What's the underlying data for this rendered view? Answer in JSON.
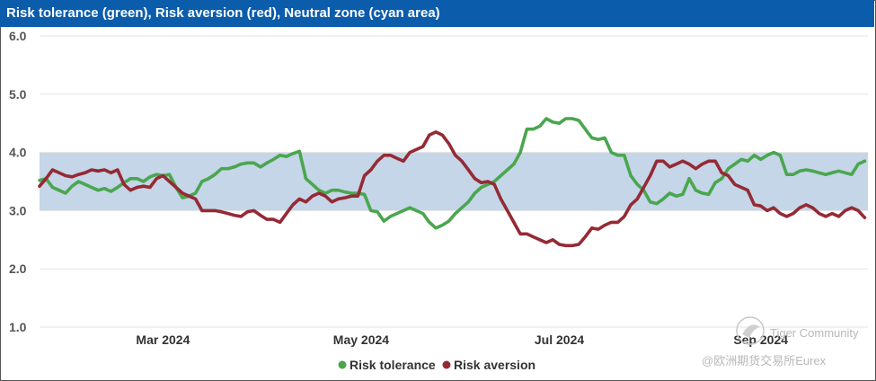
{
  "chart_data": {
    "type": "line",
    "title": "Risk tolerance (green), Risk aversion (red), Neutral zone (cyan area)",
    "xlabel": "",
    "ylabel": "",
    "ylim": [
      1.0,
      6.0
    ],
    "y_ticks": [
      "1.0",
      "2.0",
      "3.0",
      "4.0",
      "5.0",
      "6.0"
    ],
    "x_ticks": [
      {
        "label": "Mar 2024",
        "t": 38
      },
      {
        "label": "May 2024",
        "t": 99
      },
      {
        "label": "Jul 2024",
        "t": 160
      },
      {
        "label": "Sep 2024",
        "t": 222
      }
    ],
    "x_range": [
      0,
      255
    ],
    "neutral_zone": {
      "low": 3.0,
      "high": 4.0,
      "color": "#c4d6e7"
    },
    "series": [
      {
        "name": "Risk tolerance",
        "color": "#4aa64f",
        "points": [
          [
            0,
            3.52
          ],
          [
            2,
            3.55
          ],
          [
            4,
            3.4
          ],
          [
            6,
            3.35
          ],
          [
            8,
            3.3
          ],
          [
            10,
            3.42
          ],
          [
            12,
            3.5
          ],
          [
            14,
            3.45
          ],
          [
            16,
            3.4
          ],
          [
            18,
            3.35
          ],
          [
            20,
            3.38
          ],
          [
            22,
            3.33
          ],
          [
            24,
            3.4
          ],
          [
            26,
            3.48
          ],
          [
            28,
            3.55
          ],
          [
            30,
            3.55
          ],
          [
            32,
            3.5
          ],
          [
            34,
            3.58
          ],
          [
            36,
            3.62
          ],
          [
            38,
            3.6
          ],
          [
            40,
            3.62
          ],
          [
            42,
            3.4
          ],
          [
            44,
            3.22
          ],
          [
            46,
            3.25
          ],
          [
            48,
            3.3
          ],
          [
            50,
            3.5
          ],
          [
            52,
            3.55
          ],
          [
            54,
            3.62
          ],
          [
            56,
            3.72
          ],
          [
            58,
            3.72
          ],
          [
            60,
            3.75
          ],
          [
            62,
            3.8
          ],
          [
            64,
            3.82
          ],
          [
            66,
            3.82
          ],
          [
            68,
            3.75
          ],
          [
            70,
            3.82
          ],
          [
            72,
            3.88
          ],
          [
            74,
            3.95
          ],
          [
            76,
            3.93
          ],
          [
            78,
            3.98
          ],
          [
            80,
            4.02
          ],
          [
            82,
            3.55
          ],
          [
            84,
            3.45
          ],
          [
            86,
            3.35
          ],
          [
            88,
            3.3
          ],
          [
            90,
            3.35
          ],
          [
            92,
            3.35
          ],
          [
            94,
            3.32
          ],
          [
            96,
            3.3
          ],
          [
            98,
            3.3
          ],
          [
            100,
            3.28
          ],
          [
            102,
            3.0
          ],
          [
            104,
            2.98
          ],
          [
            106,
            2.82
          ],
          [
            108,
            2.9
          ],
          [
            110,
            2.95
          ],
          [
            112,
            3.0
          ],
          [
            114,
            3.05
          ],
          [
            116,
            3.0
          ],
          [
            118,
            2.95
          ],
          [
            120,
            2.8
          ],
          [
            122,
            2.7
          ],
          [
            124,
            2.75
          ],
          [
            126,
            2.82
          ],
          [
            128,
            2.95
          ],
          [
            130,
            3.05
          ],
          [
            132,
            3.15
          ],
          [
            134,
            3.3
          ],
          [
            136,
            3.4
          ],
          [
            138,
            3.45
          ],
          [
            140,
            3.5
          ],
          [
            142,
            3.6
          ],
          [
            144,
            3.7
          ],
          [
            146,
            3.8
          ],
          [
            148,
            4.0
          ],
          [
            150,
            4.4
          ],
          [
            152,
            4.4
          ],
          [
            154,
            4.45
          ],
          [
            156,
            4.58
          ],
          [
            158,
            4.52
          ],
          [
            160,
            4.5
          ],
          [
            162,
            4.58
          ],
          [
            164,
            4.58
          ],
          [
            166,
            4.55
          ],
          [
            168,
            4.4
          ],
          [
            170,
            4.25
          ],
          [
            172,
            4.22
          ],
          [
            174,
            4.25
          ],
          [
            176,
            4.0
          ],
          [
            178,
            3.95
          ],
          [
            180,
            3.95
          ],
          [
            182,
            3.6
          ],
          [
            184,
            3.45
          ],
          [
            186,
            3.35
          ],
          [
            188,
            3.15
          ],
          [
            190,
            3.12
          ],
          [
            192,
            3.2
          ],
          [
            194,
            3.3
          ],
          [
            196,
            3.25
          ],
          [
            198,
            3.28
          ],
          [
            200,
            3.55
          ],
          [
            202,
            3.35
          ],
          [
            204,
            3.3
          ],
          [
            206,
            3.28
          ],
          [
            208,
            3.48
          ],
          [
            210,
            3.55
          ],
          [
            212,
            3.72
          ],
          [
            214,
            3.8
          ],
          [
            216,
            3.88
          ],
          [
            218,
            3.85
          ],
          [
            220,
            3.95
          ],
          [
            222,
            3.88
          ],
          [
            224,
            3.95
          ],
          [
            226,
            4.0
          ],
          [
            228,
            3.95
          ],
          [
            230,
            3.62
          ],
          [
            232,
            3.62
          ],
          [
            234,
            3.68
          ],
          [
            236,
            3.7
          ],
          [
            238,
            3.68
          ],
          [
            240,
            3.65
          ],
          [
            242,
            3.62
          ],
          [
            244,
            3.65
          ],
          [
            246,
            3.68
          ],
          [
            248,
            3.65
          ],
          [
            250,
            3.62
          ],
          [
            252,
            3.8
          ],
          [
            254,
            3.85
          ]
        ]
      },
      {
        "name": "Risk aversion",
        "color": "#952a35",
        "points": [
          [
            0,
            3.42
          ],
          [
            2,
            3.55
          ],
          [
            4,
            3.7
          ],
          [
            6,
            3.65
          ],
          [
            8,
            3.6
          ],
          [
            10,
            3.58
          ],
          [
            12,
            3.62
          ],
          [
            14,
            3.65
          ],
          [
            16,
            3.7
          ],
          [
            18,
            3.68
          ],
          [
            20,
            3.7
          ],
          [
            22,
            3.65
          ],
          [
            24,
            3.7
          ],
          [
            26,
            3.45
          ],
          [
            28,
            3.35
          ],
          [
            30,
            3.4
          ],
          [
            32,
            3.42
          ],
          [
            34,
            3.4
          ],
          [
            36,
            3.55
          ],
          [
            38,
            3.6
          ],
          [
            40,
            3.5
          ],
          [
            42,
            3.4
          ],
          [
            44,
            3.3
          ],
          [
            46,
            3.25
          ],
          [
            48,
            3.2
          ],
          [
            50,
            3.0
          ],
          [
            52,
            3.0
          ],
          [
            54,
            3.0
          ],
          [
            56,
            2.98
          ],
          [
            58,
            2.95
          ],
          [
            60,
            2.92
          ],
          [
            62,
            2.9
          ],
          [
            64,
            2.98
          ],
          [
            66,
            3.0
          ],
          [
            68,
            2.92
          ],
          [
            70,
            2.85
          ],
          [
            72,
            2.85
          ],
          [
            74,
            2.8
          ],
          [
            76,
            2.95
          ],
          [
            78,
            3.1
          ],
          [
            80,
            3.2
          ],
          [
            82,
            3.15
          ],
          [
            84,
            3.25
          ],
          [
            86,
            3.3
          ],
          [
            88,
            3.25
          ],
          [
            90,
            3.15
          ],
          [
            92,
            3.2
          ],
          [
            94,
            3.22
          ],
          [
            96,
            3.25
          ],
          [
            98,
            3.25
          ],
          [
            100,
            3.6
          ],
          [
            102,
            3.7
          ],
          [
            104,
            3.85
          ],
          [
            106,
            3.95
          ],
          [
            108,
            3.95
          ],
          [
            110,
            3.9
          ],
          [
            112,
            3.85
          ],
          [
            114,
            4.0
          ],
          [
            116,
            4.05
          ],
          [
            118,
            4.1
          ],
          [
            120,
            4.3
          ],
          [
            122,
            4.35
          ],
          [
            124,
            4.3
          ],
          [
            126,
            4.15
          ],
          [
            128,
            3.95
          ],
          [
            130,
            3.85
          ],
          [
            132,
            3.7
          ],
          [
            134,
            3.55
          ],
          [
            136,
            3.48
          ],
          [
            138,
            3.5
          ],
          [
            140,
            3.45
          ],
          [
            142,
            3.2
          ],
          [
            144,
            3.0
          ],
          [
            146,
            2.8
          ],
          [
            148,
            2.6
          ],
          [
            150,
            2.6
          ],
          [
            152,
            2.55
          ],
          [
            154,
            2.5
          ],
          [
            156,
            2.45
          ],
          [
            158,
            2.5
          ],
          [
            160,
            2.42
          ],
          [
            162,
            2.4
          ],
          [
            164,
            2.4
          ],
          [
            166,
            2.42
          ],
          [
            168,
            2.55
          ],
          [
            170,
            2.7
          ],
          [
            172,
            2.68
          ],
          [
            174,
            2.75
          ],
          [
            176,
            2.8
          ],
          [
            178,
            2.8
          ],
          [
            180,
            2.9
          ],
          [
            182,
            3.1
          ],
          [
            184,
            3.2
          ],
          [
            186,
            3.4
          ],
          [
            188,
            3.6
          ],
          [
            190,
            3.85
          ],
          [
            192,
            3.85
          ],
          [
            194,
            3.75
          ],
          [
            196,
            3.8
          ],
          [
            198,
            3.85
          ],
          [
            200,
            3.8
          ],
          [
            202,
            3.72
          ],
          [
            204,
            3.8
          ],
          [
            206,
            3.85
          ],
          [
            208,
            3.85
          ],
          [
            210,
            3.65
          ],
          [
            212,
            3.6
          ],
          [
            214,
            3.45
          ],
          [
            216,
            3.4
          ],
          [
            218,
            3.35
          ],
          [
            220,
            3.1
          ],
          [
            222,
            3.08
          ],
          [
            224,
            3.0
          ],
          [
            226,
            3.05
          ],
          [
            228,
            2.95
          ],
          [
            230,
            2.9
          ],
          [
            232,
            2.95
          ],
          [
            234,
            3.05
          ],
          [
            236,
            3.1
          ],
          [
            238,
            3.05
          ],
          [
            240,
            2.95
          ],
          [
            242,
            2.9
          ],
          [
            244,
            2.95
          ],
          [
            246,
            2.9
          ],
          [
            248,
            3.0
          ],
          [
            250,
            3.05
          ],
          [
            252,
            3.0
          ],
          [
            254,
            2.88
          ]
        ]
      }
    ]
  },
  "watermark": {
    "brand": "Tiger Community",
    "handle": "@欧洲期货交易所Eurex"
  }
}
